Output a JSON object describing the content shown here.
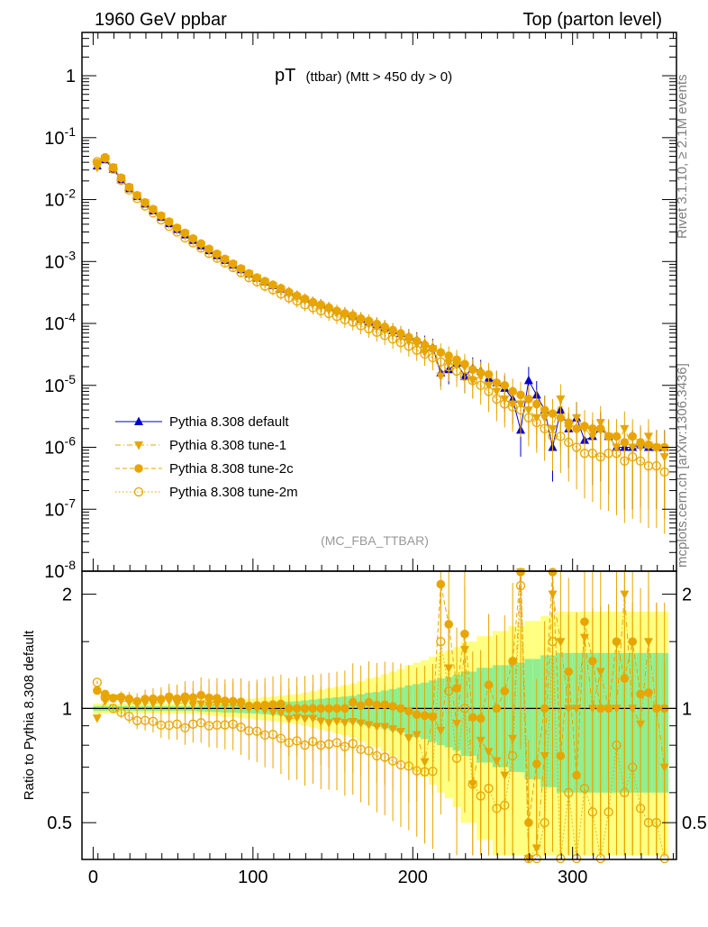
{
  "header": {
    "left": "1960 GeV ppbar",
    "right": "Top (parton level)"
  },
  "side_labels": {
    "rivet": "Rivet 3.1.10, ≥ 2.1M events",
    "mcplots": "mcplots.cern.ch [arXiv:1306.3436]"
  },
  "chart_data": {
    "type": "scatter",
    "title": "pT (ttbar) (Mtt > 450 dy > 0)",
    "title_main": "pT",
    "title_sub": "(ttbar) (Mtt > 450 dy > 0)",
    "watermark": "(MC_FBA_TTBAR)",
    "ratio_ylabel": "Ratio to Pythia 8.308 default",
    "xlim": [
      -7,
      365
    ],
    "ylim": [
      1e-08,
      5
    ],
    "yscale": "log",
    "ratio_ylim": [
      0.4,
      2.3
    ],
    "x_ticks": [
      "0",
      "100",
      "200",
      "300"
    ],
    "y_ticks": [
      "1",
      "10^-1",
      "10^-2",
      "10^-3",
      "10^-4",
      "10^-5",
      "10^-6",
      "10^-7",
      "10^-8"
    ],
    "ratio_ticks": [
      "0.5",
      "1",
      "2"
    ],
    "legend": {
      "position": "bottom-left"
    },
    "colors": {
      "default": "#0000cc",
      "tunes": "#e8a500",
      "band_inner": "#90ee90",
      "band_outer": "#ffff80"
    },
    "x": [
      2.5,
      7.5,
      12.5,
      17.5,
      22.5,
      27.5,
      32.5,
      37.5,
      42.5,
      47.5,
      52.5,
      57.5,
      62.5,
      67.5,
      72.5,
      77.5,
      82.5,
      87.5,
      92.5,
      97.5,
      102.5,
      107.5,
      112.5,
      117.5,
      122.5,
      127.5,
      132.5,
      137.5,
      142.5,
      147.5,
      152.5,
      157.5,
      162.5,
      167.5,
      172.5,
      177.5,
      182.5,
      187.5,
      192.5,
      197.5,
      202.5,
      207.5,
      212.5,
      217.5,
      222.5,
      227.5,
      232.5,
      237.5,
      242.5,
      247.5,
      252.5,
      257.5,
      262.5,
      267.5,
      272.5,
      277.5,
      282.5,
      287.5,
      292.5,
      297.5,
      302.5,
      307.5,
      312.5,
      317.5,
      322.5,
      327.5,
      332.5,
      337.5,
      342.5,
      347.5,
      352.5,
      357.5
    ],
    "series": [
      {
        "name": "Pythia 8.308 default",
        "marker": "triangle-up",
        "line": "solid",
        "values": [
          0.035,
          0.044,
          0.031,
          0.021,
          0.015,
          0.0112,
          0.0085,
          0.0066,
          0.0052,
          0.0041,
          0.0033,
          0.0027,
          0.0022,
          0.0018,
          0.0015,
          0.00125,
          0.00105,
          0.00088,
          0.00074,
          0.00063,
          0.00054,
          0.00047,
          0.00041,
          0.00036,
          0.00032,
          0.00028,
          0.00025,
          0.00022,
          0.0002,
          0.00018,
          0.00016,
          0.000145,
          0.00013,
          0.000118,
          0.000106,
          9.6e-05,
          8.6e-05,
          7.7e-05,
          6.9e-05,
          6.1e-05,
          5.4e-05,
          4.7e-05,
          4.1e-05,
          1.6e-05,
          1.8e-05,
          2.3e-05,
          1.4e-05,
          1.9e-05,
          1.7e-05,
          1.3e-05,
          1.1e-05,
          9e-06,
          6e-06,
          1.9e-06,
          1.2e-05,
          7e-06,
          4e-06,
          1e-06,
          4e-06,
          2e-06,
          3e-06,
          1.3e-06,
          1.5e-06,
          2e-06,
          1.5e-06,
          1e-06,
          1e-06,
          1e-06,
          1.1e-06,
          1e-06,
          1e-06,
          1e-06
        ]
      },
      {
        "name": "Pythia 8.308 tune-1",
        "marker": "triangle-down",
        "line": "dashdot",
        "values": [
          0.033,
          0.046,
          0.033,
          0.022,
          0.0156,
          0.0115,
          0.0088,
          0.0068,
          0.0054,
          0.0043,
          0.0034,
          0.0028,
          0.00225,
          0.00185,
          0.00153,
          0.00128,
          0.00107,
          0.0009,
          0.00075,
          0.00063,
          0.00054,
          0.000465,
          0.0004,
          0.00035,
          0.0003,
          0.000265,
          0.000235,
          0.000207,
          0.000185,
          0.000165,
          0.000148,
          0.000133,
          0.00012,
          0.000108,
          9.6e-05,
          8.6e-05,
          7.7e-05,
          6.8e-05,
          6e-05,
          5.1e-05,
          4.6e-05,
          3.4e-05,
          3.9e-05,
          1.4e-05,
          2.3e-05,
          2.1e-05,
          2e-05,
          1.2e-05,
          1.4e-05,
          1e-05,
          8e-06,
          6e-06,
          5e-06,
          5e-06,
          4e-06,
          3e-06,
          3e-06,
          2e-06,
          6e-06,
          2e-06,
          3e-06,
          2e-06,
          1.5e-06,
          2.5e-06,
          1.5e-06,
          1e-06,
          2e-06,
          1e-06,
          1e-06,
          1.5e-06,
          1e-06,
          7e-07
        ]
      },
      {
        "name": "Pythia 8.308 tune-2c",
        "marker": "circle",
        "line": "dashed",
        "values": [
          0.039,
          0.048,
          0.033,
          0.0225,
          0.0159,
          0.0117,
          0.009,
          0.007,
          0.0055,
          0.0044,
          0.0035,
          0.0029,
          0.00235,
          0.00195,
          0.0016,
          0.00133,
          0.0011,
          0.00092,
          0.00077,
          0.00064,
          0.00055,
          0.00048,
          0.00042,
          0.00037,
          0.00032,
          0.00028,
          0.00025,
          0.00022,
          0.0002,
          0.00018,
          0.00016,
          0.000145,
          0.000135,
          0.00012,
          0.00011,
          9.8e-05,
          8.8e-05,
          7.8e-05,
          6.9e-05,
          6e-05,
          5.2e-05,
          4.5e-05,
          3.9e-05,
          3.4e-05,
          3e-05,
          2.6e-05,
          2.2e-05,
          1.8e-05,
          1.6e-05,
          1.5e-05,
          1.1e-05,
          1e-05,
          8e-06,
          7e-06,
          6e-06,
          5e-06,
          4e-06,
          3.5e-06,
          3e-06,
          2.5e-06,
          2e-06,
          2.2e-06,
          2e-06,
          2e-06,
          1.5e-06,
          1.5e-06,
          1.2e-06,
          1.5e-06,
          1.2e-06,
          1.1e-06,
          1e-06,
          1e-06
        ]
      },
      {
        "name": "Pythia 8.308 tune-2m",
        "marker": "circle-open",
        "line": "dotted",
        "values": [
          0.041,
          0.047,
          0.031,
          0.0205,
          0.0143,
          0.0104,
          0.0079,
          0.0061,
          0.0047,
          0.0037,
          0.003,
          0.0024,
          0.002,
          0.00165,
          0.00135,
          0.00113,
          0.00095,
          0.0008,
          0.00066,
          0.00055,
          0.00047,
          0.0004,
          0.00035,
          0.0003,
          0.00026,
          0.00023,
          0.0002,
          0.00018,
          0.00016,
          0.000145,
          0.00013,
          0.000115,
          0.000105,
          9.2e-05,
          8.2e-05,
          7.2e-05,
          6.4e-05,
          5.6e-05,
          4.9e-05,
          4.3e-05,
          3.7e-05,
          3.2e-05,
          2.8e-05,
          2.4e-05,
          2e-05,
          1.7e-05,
          1.4e-05,
          1.2e-05,
          1e-05,
          8e-06,
          6e-06,
          5e-06,
          4.5e-06,
          4e-06,
          3e-06,
          2.5e-06,
          2e-06,
          1.5e-06,
          1.5e-06,
          1.2e-06,
          1e-06,
          8e-07,
          8e-07,
          7e-07,
          8e-07,
          8e-07,
          6e-07,
          7e-07,
          6e-07,
          5e-07,
          5e-07,
          4e-07
        ]
      }
    ],
    "ratio_band_outer": [
      0.03,
      0.03,
      0.03,
      0.03,
      0.03,
      0.03,
      0.03,
      0.03,
      0.03,
      0.03,
      0.03,
      0.03,
      0.03,
      0.035,
      0.04,
      0.045,
      0.05,
      0.05,
      0.055,
      0.06,
      0.065,
      0.07,
      0.075,
      0.08,
      0.085,
      0.09,
      0.1,
      0.11,
      0.12,
      0.13,
      0.14,
      0.15,
      0.16,
      0.18,
      0.2,
      0.21,
      0.23,
      0.25,
      0.27,
      0.3,
      0.32,
      0.34,
      0.37,
      0.4,
      0.42,
      0.45,
      0.5,
      0.5,
      0.55,
      0.55,
      0.6,
      0.6,
      0.65,
      0.65,
      0.7,
      0.7,
      0.75,
      0.75,
      0.8,
      0.8,
      0.8,
      0.8,
      0.8,
      0.8,
      0.8,
      0.8,
      0.8,
      0.8,
      0.8,
      0.8,
      0.8,
      0.8
    ],
    "ratio_band_inner": [
      0.015,
      0.015,
      0.015,
      0.015,
      0.015,
      0.015,
      0.015,
      0.015,
      0.015,
      0.015,
      0.015,
      0.015,
      0.015,
      0.018,
      0.02,
      0.022,
      0.025,
      0.025,
      0.028,
      0.03,
      0.032,
      0.035,
      0.038,
      0.04,
      0.042,
      0.045,
      0.05,
      0.055,
      0.06,
      0.065,
      0.07,
      0.075,
      0.08,
      0.09,
      0.1,
      0.105,
      0.115,
      0.125,
      0.135,
      0.15,
      0.16,
      0.17,
      0.185,
      0.2,
      0.21,
      0.225,
      0.25,
      0.25,
      0.28,
      0.28,
      0.3,
      0.3,
      0.32,
      0.32,
      0.35,
      0.35,
      0.38,
      0.38,
      0.4,
      0.4,
      0.4,
      0.4,
      0.4,
      0.4,
      0.4,
      0.4,
      0.4,
      0.4,
      0.4,
      0.4,
      0.4,
      0.4
    ]
  }
}
